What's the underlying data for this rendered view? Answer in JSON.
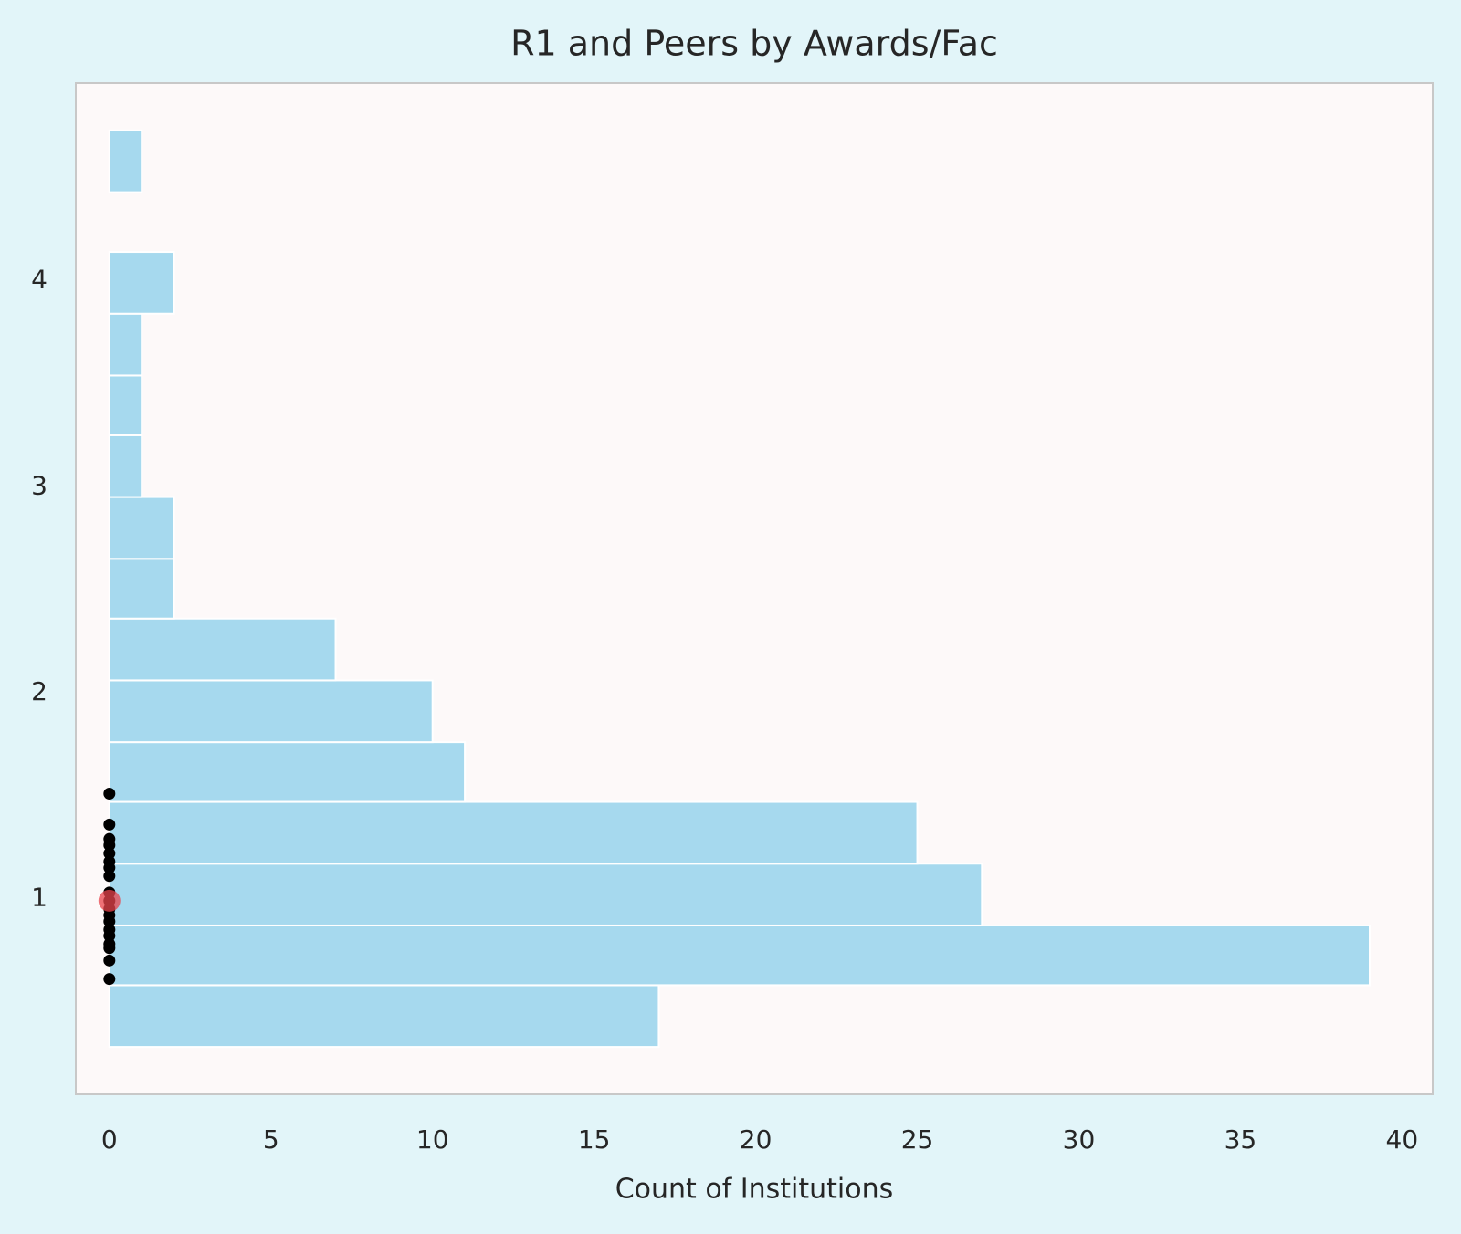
{
  "chart_data": {
    "type": "histogram",
    "orientation": "horizontal",
    "title": "R1 and Peers by Awards/Fac",
    "xlabel": "Count of Institutions",
    "xlim": [
      -1.04,
      40.95
    ],
    "ylim": [
      0.05,
      4.96
    ],
    "xticks": [
      0,
      5,
      10,
      15,
      20,
      25,
      30,
      35,
      40
    ],
    "yticks": [
      1,
      2,
      3,
      4
    ],
    "grid": false,
    "layers": [
      {
        "type": "histogram",
        "color": "#a6d9ee",
        "edgecolor": "#ffffff",
        "bins": [
          0.28,
          0.58,
          0.87,
          1.17,
          1.47,
          1.76,
          2.06,
          2.36,
          2.65,
          2.95,
          3.25,
          3.54,
          3.84,
          4.14,
          4.43,
          4.73
        ],
        "counts": [
          17,
          39,
          27,
          25,
          11,
          10,
          7,
          2,
          2,
          1,
          1,
          1,
          2,
          0,
          1
        ]
      },
      {
        "type": "scatter",
        "color": "#000000",
        "x": [
          0,
          0,
          0,
          0,
          0,
          0,
          0,
          0,
          0,
          0,
          0,
          0,
          0,
          0,
          0,
          0,
          0,
          0,
          0
        ],
        "y": [
          1.51,
          1.36,
          1.29,
          1.26,
          1.22,
          1.18,
          1.15,
          1.11,
          1.03,
          0.99,
          0.95,
          0.92,
          0.89,
          0.85,
          0.82,
          0.78,
          0.76,
          0.7,
          0.61
        ]
      },
      {
        "type": "scatter",
        "color": "#e8434b",
        "highlight": true,
        "x": [
          0
        ],
        "y": [
          0.99
        ]
      }
    ]
  }
}
